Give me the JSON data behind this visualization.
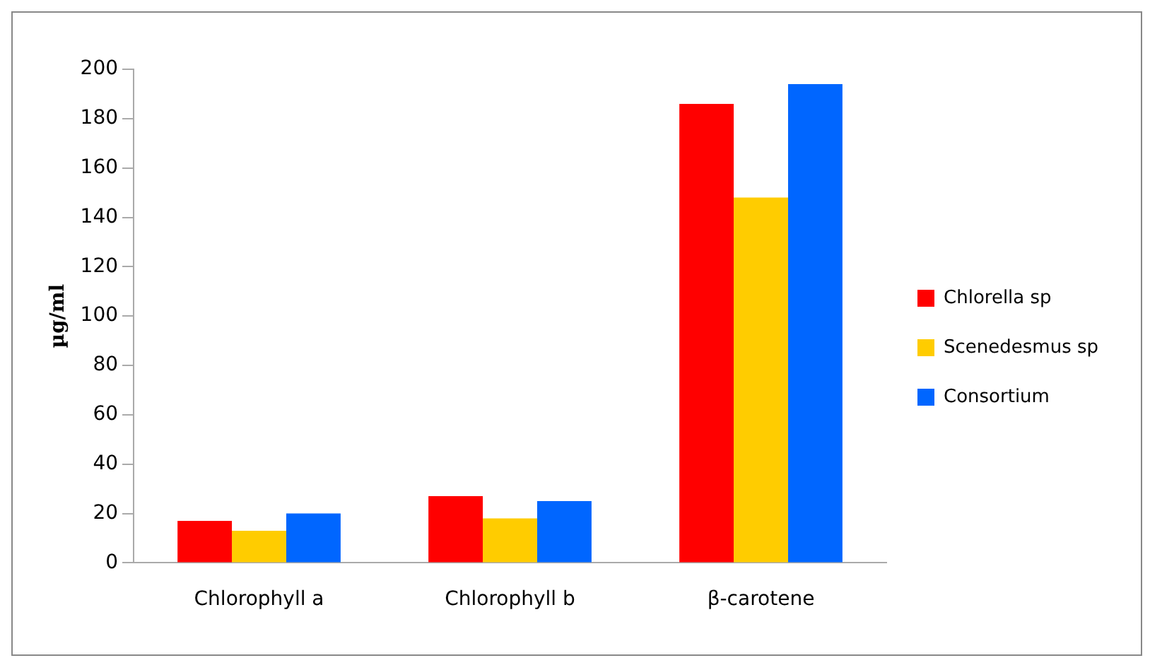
{
  "chart_data": {
    "type": "bar",
    "ylabel": "µg/ml",
    "categories": [
      "Chlorophyll a",
      "Chlorophyll b",
      "β-carotene"
    ],
    "series": [
      {
        "name": "Chlorella sp",
        "color": "#ff0000",
        "values": [
          17,
          27,
          186
        ]
      },
      {
        "name": "Scenedesmus sp",
        "color": "#ffcc00",
        "values": [
          13,
          18,
          148
        ]
      },
      {
        "name": "Consortium",
        "color": "#0066ff",
        "values": [
          20,
          25,
          194
        ]
      }
    ],
    "ylim": [
      0,
      200
    ],
    "yticks": [
      0,
      20,
      40,
      60,
      80,
      100,
      120,
      140,
      160,
      180,
      200
    ],
    "grid": false,
    "legend": "right"
  }
}
